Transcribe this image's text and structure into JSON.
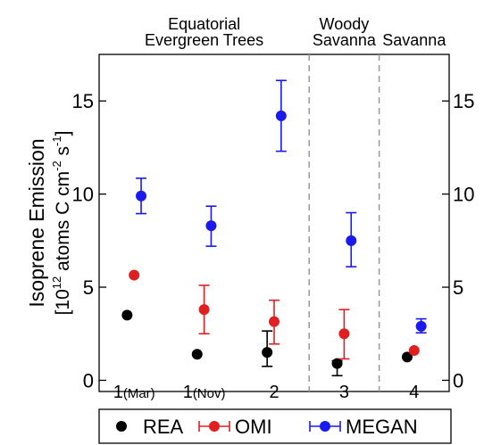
{
  "chart_data": {
    "type": "scatter",
    "ylabel_line1": "Isoprene Emission",
    "ylabel_line2_prefix": "[10",
    "ylabel_line2_exp1": "12",
    "ylabel_line2_mid": " atoms C cm",
    "ylabel_line2_exp2": "-2",
    "ylabel_line2_mid2": " s",
    "ylabel_line2_exp3": "-1",
    "ylabel_line2_suffix": "]",
    "ylim": [
      -0.6,
      17.5
    ],
    "yticks": [
      0,
      5,
      10,
      15
    ],
    "ytick_labels": [
      "0",
      "5",
      "10",
      "15"
    ],
    "grid": false,
    "legend_position": "bottom",
    "groups": [
      {
        "label_lines": [
          "Equatorial",
          "Evergreen Trees"
        ],
        "x_range": [
          0,
          3
        ]
      },
      {
        "label_lines": [
          "Woody",
          "Savanna"
        ],
        "x_range": [
          3,
          4
        ]
      },
      {
        "label_lines": [
          "Savanna"
        ],
        "x_range": [
          4,
          5
        ]
      }
    ],
    "categories": [
      {
        "main": "1",
        "sub": "(Mar)"
      },
      {
        "main": "1",
        "sub": "(Nov)"
      },
      {
        "main": "2",
        "sub": ""
      },
      {
        "main": "3",
        "sub": ""
      },
      {
        "main": "4",
        "sub": ""
      }
    ],
    "series": [
      {
        "name": "REA",
        "color": "#000000",
        "x": [
          0.4,
          1.4,
          2.4,
          3.4,
          4.4
        ],
        "values": [
          3.5,
          1.4,
          1.5,
          0.9,
          1.25
        ],
        "err_low": [
          null,
          null,
          0.75,
          0.25,
          null
        ],
        "err_high": [
          null,
          null,
          2.65,
          1.05,
          null
        ]
      },
      {
        "name": "OMI",
        "color": "#e02020",
        "x": [
          0.5,
          1.5,
          2.5,
          3.5,
          4.5
        ],
        "values": [
          5.65,
          3.8,
          3.15,
          2.5,
          1.6
        ],
        "err_low": [
          null,
          2.5,
          1.95,
          1.15,
          null
        ],
        "err_high": [
          null,
          5.1,
          4.3,
          3.8,
          null
        ]
      },
      {
        "name": "MEGAN",
        "color": "#1a1aee",
        "x": [
          0.6,
          1.6,
          2.6,
          3.6,
          4.6
        ],
        "values": [
          9.9,
          8.3,
          14.2,
          7.5,
          2.9
        ],
        "err_low": [
          8.95,
          7.2,
          12.3,
          6.1,
          2.55
        ],
        "err_high": [
          10.85,
          9.35,
          16.1,
          9.0,
          3.3
        ]
      }
    ]
  }
}
